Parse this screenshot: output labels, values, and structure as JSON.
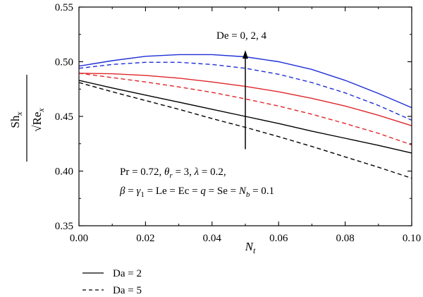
{
  "chart_data": {
    "type": "line",
    "xlabel": "N_t",
    "ylabel": {
      "numerator": "Sh_x",
      "denominator": "√Re_x"
    },
    "xlim": [
      0.0,
      0.1
    ],
    "ylim": [
      0.35,
      0.55
    ],
    "xticks": [
      "0.00",
      "0.02",
      "0.04",
      "0.06",
      "0.08",
      "0.10"
    ],
    "yticks": [
      "0.35",
      "0.40",
      "0.45",
      "0.50",
      "0.55"
    ],
    "grid": false,
    "annotation_arrow": "De = 0, 2, 4",
    "annotation_params_line1": "Pr = 0.72, θr = 3, λ = 0.2,",
    "annotation_params_line2": "β = γ1 = Le = Ec = q = Se = Nb = 0.1",
    "legend": [
      {
        "label": "Da = 2",
        "style": "solid"
      },
      {
        "label": "Da = 5",
        "style": "dashed"
      }
    ],
    "legend_placement": "bottom-left, below chart",
    "x": [
      0.0,
      0.01,
      0.02,
      0.03,
      0.04,
      0.05,
      0.06,
      0.07,
      0.08,
      0.09,
      0.1
    ],
    "series": [
      {
        "values": [
          0.496,
          0.501,
          0.505,
          0.5065,
          0.5065,
          0.5045,
          0.5,
          0.493,
          0.483,
          0.471,
          0.458
        ],
        "color": "#1f2fd6",
        "style": "solid"
      },
      {
        "values": [
          0.494,
          0.4975,
          0.4995,
          0.4995,
          0.4975,
          0.494,
          0.4885,
          0.481,
          0.4715,
          0.46,
          0.4465
        ],
        "color": "#1f2fd6",
        "style": "dashed"
      },
      {
        "values": [
          0.4895,
          0.489,
          0.4875,
          0.485,
          0.4815,
          0.4775,
          0.4725,
          0.4665,
          0.4595,
          0.451,
          0.4415
        ],
        "color": "#e0262a",
        "style": "solid"
      },
      {
        "values": [
          0.4895,
          0.4855,
          0.4815,
          0.477,
          0.472,
          0.466,
          0.4595,
          0.452,
          0.4435,
          0.4345,
          0.424
        ],
        "color": "#e0262a",
        "style": "dashed"
      },
      {
        "values": [
          0.483,
          0.476,
          0.4695,
          0.463,
          0.4565,
          0.45,
          0.4435,
          0.4365,
          0.43,
          0.4235,
          0.4165
        ],
        "color": "#000000",
        "style": "solid"
      },
      {
        "values": [
          0.481,
          0.4725,
          0.4645,
          0.4565,
          0.448,
          0.44,
          0.4315,
          0.4225,
          0.413,
          0.4035,
          0.3935
        ],
        "color": "#000000",
        "style": "dashed"
      }
    ],
    "arrow": {
      "x": 0.05,
      "y_from": 0.42,
      "y_to": 0.508
    }
  }
}
